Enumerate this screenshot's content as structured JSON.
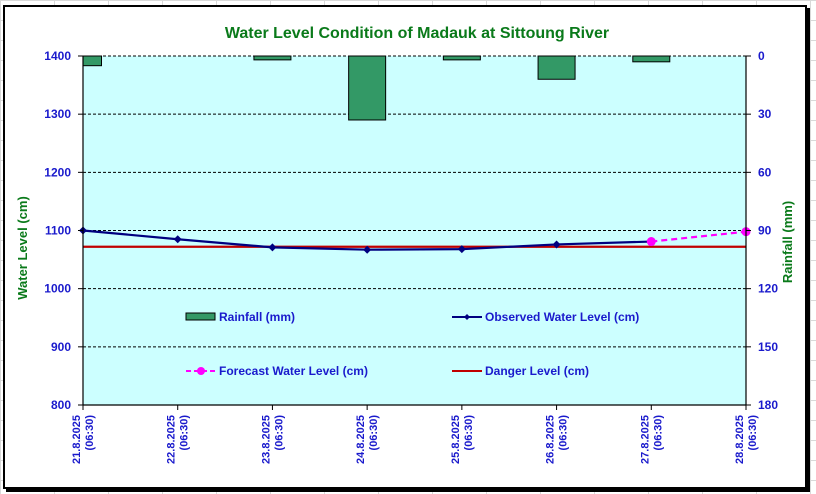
{
  "chart_data": {
    "type": "bar+line",
    "title": "Water Level Condition of Madauk at Sittoung River",
    "ylabel": "Water Level (cm)",
    "y2label": "Rainfall (mm)",
    "ylim": [
      800,
      1400
    ],
    "y2lim": [
      0,
      180
    ],
    "y2_inverted": true,
    "yticks": [
      1400,
      1300,
      1200,
      1100,
      1000,
      900,
      800
    ],
    "y2ticks": [
      0,
      30,
      60,
      90,
      120,
      150,
      180
    ],
    "categories": [
      {
        "date": "21.8.2025",
        "time": "(06:30)"
      },
      {
        "date": "22.8.2025",
        "time": "(06:30)"
      },
      {
        "date": "23.8.2025",
        "time": "(06:30)"
      },
      {
        "date": "24.8.2025",
        "time": "(06:30)"
      },
      {
        "date": "25.8.2025",
        "time": "(06:30)"
      },
      {
        "date": "26.8.2025",
        "time": "(06:30)"
      },
      {
        "date": "27.8.2025",
        "time": "(06:30)"
      },
      {
        "date": "28.8.2025",
        "time": "(06:30)"
      }
    ],
    "series": [
      {
        "name": "Rainfall (mm)",
        "kind": "bar",
        "axis": "right",
        "color": "#339966",
        "values": [
          5,
          0,
          2,
          33,
          2,
          12,
          3,
          null
        ]
      },
      {
        "name": "Observed Water Level (cm)",
        "kind": "line",
        "axis": "left",
        "color": "#000080",
        "values": [
          1100,
          1085,
          1071,
          1067,
          1068,
          1076,
          1081,
          null
        ]
      },
      {
        "name": "Forecast Water Level (cm)",
        "kind": "line-dashed",
        "axis": "left",
        "color": "#ff00ff",
        "values": [
          null,
          null,
          null,
          null,
          null,
          null,
          1081,
          1098
        ]
      },
      {
        "name": "Danger Level (cm)",
        "kind": "line",
        "axis": "left",
        "color": "#c00000",
        "values": [
          1072,
          1072,
          1072,
          1072,
          1072,
          1072,
          1072,
          1072
        ]
      }
    ],
    "grid": true,
    "legend": "inside-center",
    "plot_background": "#ccffff"
  }
}
